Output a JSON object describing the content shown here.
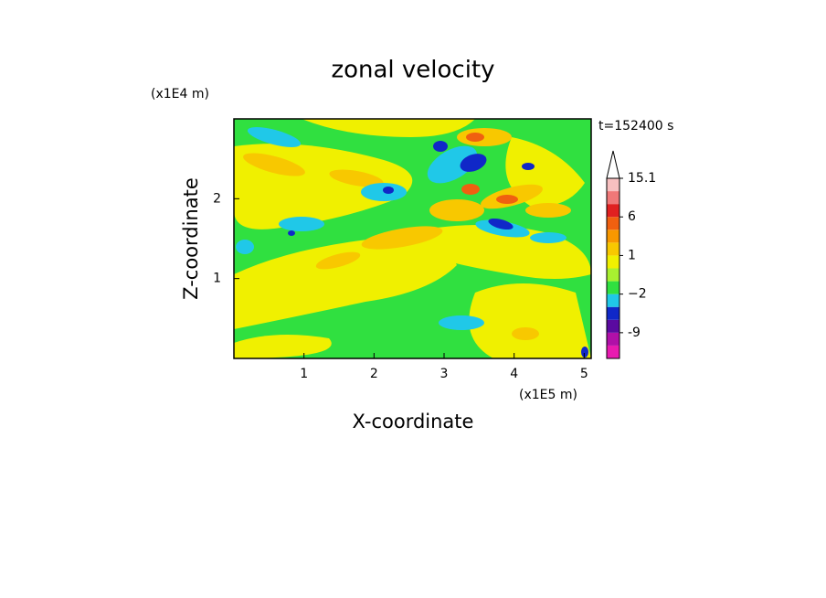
{
  "chart_data": {
    "type": "contour",
    "title": "zonal velocity",
    "x_label": "X-coordinate",
    "y_label": "Z-coordinate",
    "x_unit": "(x1E5 m)",
    "y_unit": "(x1E4 m)",
    "time_label": "t=152400 s",
    "xlim": [
      0,
      5.1
    ],
    "xticks": [
      1,
      2,
      3,
      4,
      5
    ],
    "ylim": [
      0,
      3
    ],
    "yticks": [
      1,
      2
    ],
    "colorbar": {
      "levels": [
        -15,
        -12,
        -9,
        -6,
        -3,
        -2,
        -1,
        0,
        1,
        2,
        3,
        6,
        9,
        12,
        15.1
      ],
      "colors": [
        "#e81ab0",
        "#b010a8",
        "#5a0aa0",
        "#1028c8",
        "#20c8e8",
        "#30e040",
        "#a8f030",
        "#f0f000",
        "#f8c800",
        "#f89800",
        "#f06010",
        "#e02020",
        "#f07878",
        "#f8c0c0"
      ],
      "ticks": [
        15.1,
        6,
        1,
        {
          "value": -2,
          "label": "−2"
        },
        -9
      ]
    }
  }
}
